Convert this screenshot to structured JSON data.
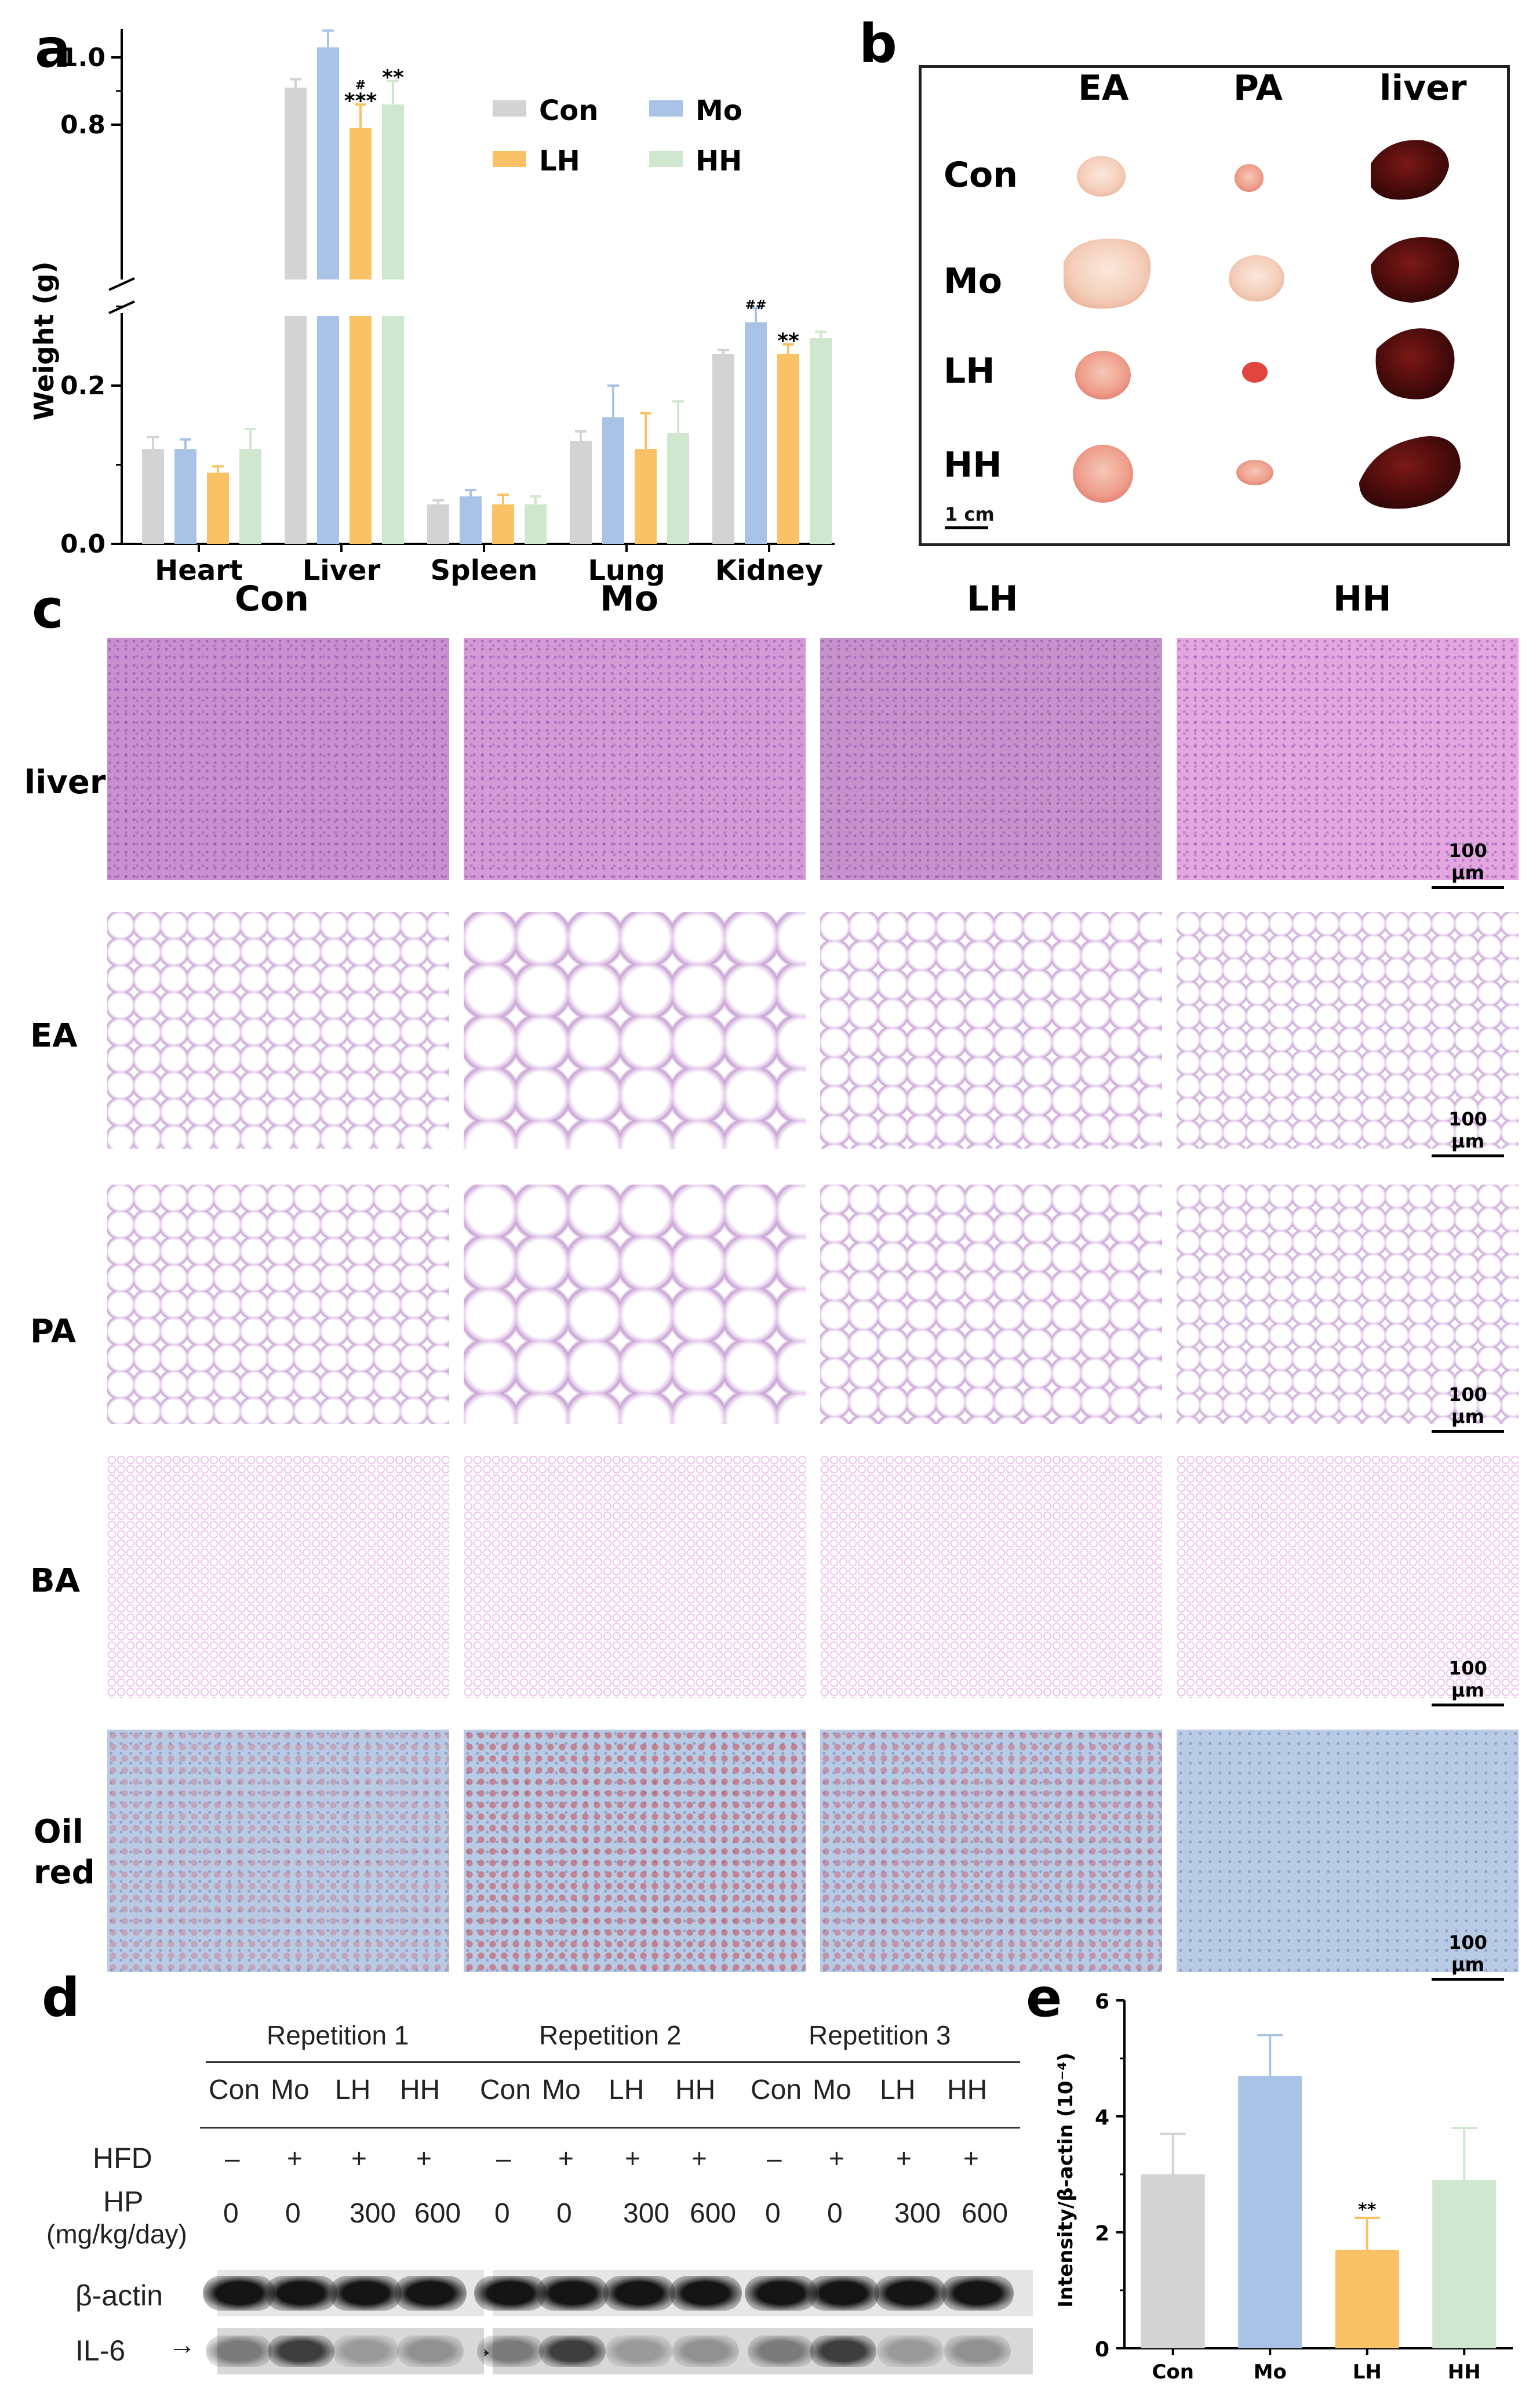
{
  "panel_labels": {
    "a": "a",
    "b": "b",
    "c": "c",
    "d": "d",
    "e": "e"
  },
  "colors": {
    "Con": "#d3d3d3",
    "Mo": "#a9c3e6",
    "LH": "#f9c266",
    "HH": "#cfe6cf"
  },
  "chart_data": [
    {
      "id": "a",
      "type": "bar",
      "title": "",
      "xlabel": "",
      "ylabel": "Weight (g)",
      "categories": [
        "Heart",
        "Liver",
        "Spleen",
        "Lung",
        "Kidney"
      ],
      "series": [
        {
          "name": "Con",
          "values": [
            0.12,
            0.91,
            0.05,
            0.13,
            0.24
          ],
          "errors": [
            0.015,
            0.025,
            0.005,
            0.012,
            0.005
          ]
        },
        {
          "name": "Mo",
          "values": [
            0.12,
            1.03,
            0.06,
            0.16,
            0.28
          ],
          "errors": [
            0.012,
            0.05,
            0.008,
            0.04,
            0.018
          ]
        },
        {
          "name": "LH",
          "values": [
            0.09,
            0.79,
            0.05,
            0.12,
            0.24
          ],
          "errors": [
            0.008,
            0.07,
            0.012,
            0.045,
            0.012
          ]
        },
        {
          "name": "HH",
          "values": [
            0.12,
            0.86,
            0.05,
            0.14,
            0.26
          ],
          "errors": [
            0.025,
            0.07,
            0.01,
            0.04,
            0.008
          ]
        }
      ],
      "axis_break": true,
      "yticks_lower": [
        "0.0",
        "0.2"
      ],
      "yticks_upper": [
        "0.8",
        "1.0"
      ],
      "annotations": [
        {
          "cat": "Liver",
          "series": "LH",
          "text": "***",
          "mark": "#"
        },
        {
          "cat": "Liver",
          "series": "HH",
          "text": "**",
          "mark": ""
        },
        {
          "cat": "Kidney",
          "series": "Mo",
          "text": "",
          "mark": "##"
        },
        {
          "cat": "Kidney",
          "series": "LH",
          "text": "**",
          "mark": ""
        }
      ],
      "legend": [
        "Con",
        "Mo",
        "LH",
        "HH"
      ],
      "legend_position": "top-right"
    },
    {
      "id": "e",
      "type": "bar",
      "title": "",
      "xlabel": "",
      "ylabel": "Intensity/β-actin (10⁻⁴)",
      "categories": [
        "Con",
        "Mo",
        "LH",
        "HH"
      ],
      "values": [
        3.0,
        4.7,
        1.7,
        2.9
      ],
      "errors": [
        0.7,
        0.7,
        0.55,
        0.9
      ],
      "ylim": [
        0,
        6
      ],
      "yticks": [
        "0",
        "2",
        "4",
        "6"
      ],
      "annotations": [
        {
          "cat": "LH",
          "text": "**"
        }
      ]
    }
  ],
  "panel_b": {
    "columns": [
      "EA",
      "PA",
      "liver"
    ],
    "rows": [
      "Con",
      "Mo",
      "LH",
      "HH"
    ],
    "scale": "1 cm"
  },
  "panel_c": {
    "columns": [
      "Con",
      "Mo",
      "LH",
      "HH"
    ],
    "rows": [
      "liver",
      "EA",
      "PA",
      "BA",
      "Oil red"
    ],
    "scale": "100 μm"
  },
  "panel_d": {
    "repetitions": [
      "Repetition 1",
      "Repetition 2",
      "Repetition 3"
    ],
    "groups": [
      "Con",
      "Mo",
      "LH",
      "HH"
    ],
    "hfd_label": "HFD",
    "hfd_values": [
      "–",
      "+",
      "+",
      "+"
    ],
    "hp_label": "HP",
    "hp_unit": "(mg/kg/day)",
    "hp_values": [
      "0",
      "0",
      "300",
      "600"
    ],
    "bands": [
      "β-actin",
      "IL-6"
    ]
  }
}
